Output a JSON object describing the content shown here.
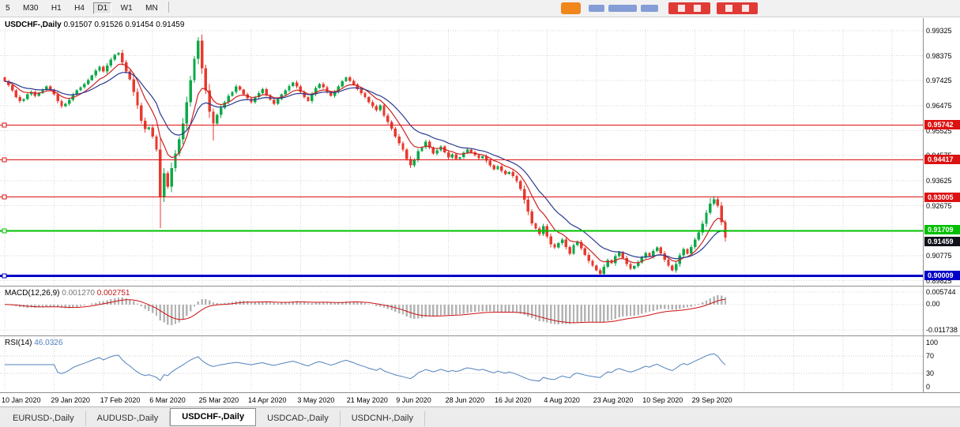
{
  "toolbar": {
    "timeframes": [
      {
        "label": "5",
        "active": false
      },
      {
        "label": "M30",
        "active": false
      },
      {
        "label": "H1",
        "active": false
      },
      {
        "label": "H4",
        "active": false
      },
      {
        "label": "D1",
        "active": true
      },
      {
        "label": "W1",
        "active": false
      },
      {
        "label": "MN",
        "active": false
      }
    ]
  },
  "brand": {
    "icon_color": "#f0861c",
    "accent_blue": "#6080cc",
    "badge_color": "#e03a36"
  },
  "chart_data": {
    "type": "candlestick",
    "symbol_title": "USDCHF-,Daily",
    "ohlc_text": "0.91507 0.91526 0.91454 0.91459",
    "open": "0.91507",
    "high": "0.91526",
    "low": "0.91454",
    "close": "0.91459",
    "price_axis_labels": [
      "0.99325",
      "0.98375",
      "0.97425",
      "0.96475",
      "0.95525",
      "0.94575",
      "0.93625",
      "0.92675",
      "0.91725",
      "0.90775",
      "0.89825"
    ],
    "date_ticks": [
      {
        "label": "10 Jan 2020",
        "index": 0
      },
      {
        "label": "29 Jan 2020",
        "index": 13
      },
      {
        "label": "17 Feb 2020",
        "index": 26
      },
      {
        "label": "6 Mar 2020",
        "index": 39
      },
      {
        "label": "25 Mar 2020",
        "index": 52
      },
      {
        "label": "14 Apr 2020",
        "index": 65
      },
      {
        "label": "3 May 2020",
        "index": 78
      },
      {
        "label": "21 May 2020",
        "index": 91
      },
      {
        "label": "9 Jun 2020",
        "index": 104
      },
      {
        "label": "28 Jun 2020",
        "index": 117
      },
      {
        "label": "16 Jul 2020",
        "index": 130
      },
      {
        "label": "4 Aug 2020",
        "index": 143
      },
      {
        "label": "23 Aug 2020",
        "index": 156
      },
      {
        "label": "10 Sep 2020",
        "index": 169
      },
      {
        "label": "29 Sep 2020",
        "index": 182
      }
    ],
    "closes": [
      0.974,
      0.9725,
      0.9705,
      0.968,
      0.9665,
      0.9672,
      0.969,
      0.97,
      0.9685,
      0.9695,
      0.971,
      0.972,
      0.9708,
      0.969,
      0.9665,
      0.9645,
      0.9655,
      0.967,
      0.969,
      0.9705,
      0.9718,
      0.973,
      0.9745,
      0.9762,
      0.978,
      0.9795,
      0.9778,
      0.98,
      0.9822,
      0.984,
      0.9848,
      0.9812,
      0.9778,
      0.9748,
      0.97,
      0.9648,
      0.959,
      0.9558,
      0.9565,
      0.953,
      0.948,
      0.93,
      0.939,
      0.934,
      0.941,
      0.9465,
      0.952,
      0.958,
      0.966,
      0.9745,
      0.9825,
      0.9895,
      0.979,
      0.9705,
      0.9625,
      0.958,
      0.9612,
      0.964,
      0.966,
      0.9685,
      0.97,
      0.972,
      0.9708,
      0.969,
      0.9675,
      0.966,
      0.968,
      0.9695,
      0.971,
      0.9688,
      0.967,
      0.9655,
      0.9672,
      0.969,
      0.9705,
      0.9722,
      0.9735,
      0.972,
      0.97,
      0.968,
      0.9665,
      0.969,
      0.9715,
      0.973,
      0.9718,
      0.97,
      0.9685,
      0.97,
      0.972,
      0.974,
      0.9755,
      0.9742,
      0.9728,
      0.971,
      0.9695,
      0.968,
      0.966,
      0.9645,
      0.963,
      0.9648,
      0.961,
      0.9585,
      0.956,
      0.953,
      0.9505,
      0.948,
      0.9445,
      0.942,
      0.944,
      0.9475,
      0.949,
      0.951,
      0.9488,
      0.9465,
      0.9478,
      0.9492,
      0.947,
      0.945,
      0.9462,
      0.9445,
      0.9452,
      0.9468,
      0.948,
      0.947,
      0.946,
      0.9448,
      0.9455,
      0.9438,
      0.942,
      0.9405,
      0.9418,
      0.94,
      0.9388,
      0.9395,
      0.938,
      0.936,
      0.933,
      0.929,
      0.9245,
      0.92,
      0.918,
      0.916,
      0.919,
      0.915,
      0.912,
      0.9108,
      0.9125,
      0.9138,
      0.911,
      0.9085,
      0.9118,
      0.913,
      0.9105,
      0.908,
      0.9058,
      0.904,
      0.9022,
      0.9008,
      0.9035,
      0.906,
      0.9048,
      0.9075,
      0.909,
      0.9068,
      0.9045,
      0.9028,
      0.9038,
      0.9052,
      0.907,
      0.9088,
      0.9075,
      0.9095,
      0.9108,
      0.9086,
      0.9062,
      0.904,
      0.9022,
      0.9045,
      0.9078,
      0.9102,
      0.9085,
      0.911,
      0.9138,
      0.9165,
      0.9198,
      0.924,
      0.9275,
      0.9292,
      0.9268,
      0.9205,
      0.9146
    ],
    "wick_overrides": {
      "41": {
        "low": 0.9182
      },
      "51": {
        "high": 0.9908
      },
      "55": {
        "low": 0.9515
      },
      "157": {
        "low": 0.8998
      },
      "186": {
        "high": 0.9296
      },
      "187": {
        "high": 0.9304
      },
      "188": {
        "high": 0.9299
      },
      "190": {
        "low": 0.9131
      }
    },
    "horizontal_lines": [
      {
        "price": 0.95742,
        "label": "0.95742",
        "color": "#dd1111",
        "thickness": 1
      },
      {
        "price": 0.94417,
        "label": "0.94417",
        "color": "#dd1111",
        "thickness": 1
      },
      {
        "price": 0.93005,
        "label": "0.93005",
        "color": "#dd1111",
        "thickness": 1
      },
      {
        "price": 0.91709,
        "label": "0.91709",
        "color": "#00c000",
        "thickness": 2
      },
      {
        "price": 0.90009,
        "label": "0.90009",
        "color": "#0000c8",
        "thickness": 3
      }
    ],
    "current_price": {
      "price": 0.91459,
      "label": "0.91459",
      "badge_color": "#10121a"
    },
    "candle_colors": {
      "up": "#0ea84a",
      "down": "#e8392e"
    },
    "ma_lines": [
      {
        "period": 8,
        "color": "#cc2222"
      },
      {
        "period": 17,
        "color": "#2b3a8f"
      }
    ],
    "indicators": {
      "macd": {
        "title": "MACD(12,26,9)",
        "value_main": "0.001270",
        "value_signal": "0.002751",
        "axis_labels": [
          "0.005744",
          "0.00",
          "-0.011738"
        ],
        "params": [
          12,
          26,
          9
        ],
        "histogram_color": "#b4b4b4",
        "signal_color": "#cc1111",
        "range": [
          0.008,
          -0.014
        ]
      },
      "rsi": {
        "title": "RSI(14)",
        "value": "46.0326",
        "axis_labels": [
          "100",
          "70",
          "30",
          "0"
        ],
        "period": 14,
        "color": "#4f81bd",
        "levels": [
          70,
          30
        ]
      }
    }
  },
  "tabs": [
    {
      "label": "EURUSD-,Daily",
      "active": false
    },
    {
      "label": "AUDUSD-,Daily",
      "active": false
    },
    {
      "label": "USDCHF-,Daily",
      "active": true
    },
    {
      "label": "USDCAD-,Daily",
      "active": false
    },
    {
      "label": "USDCNH-,Daily",
      "active": false
    }
  ]
}
